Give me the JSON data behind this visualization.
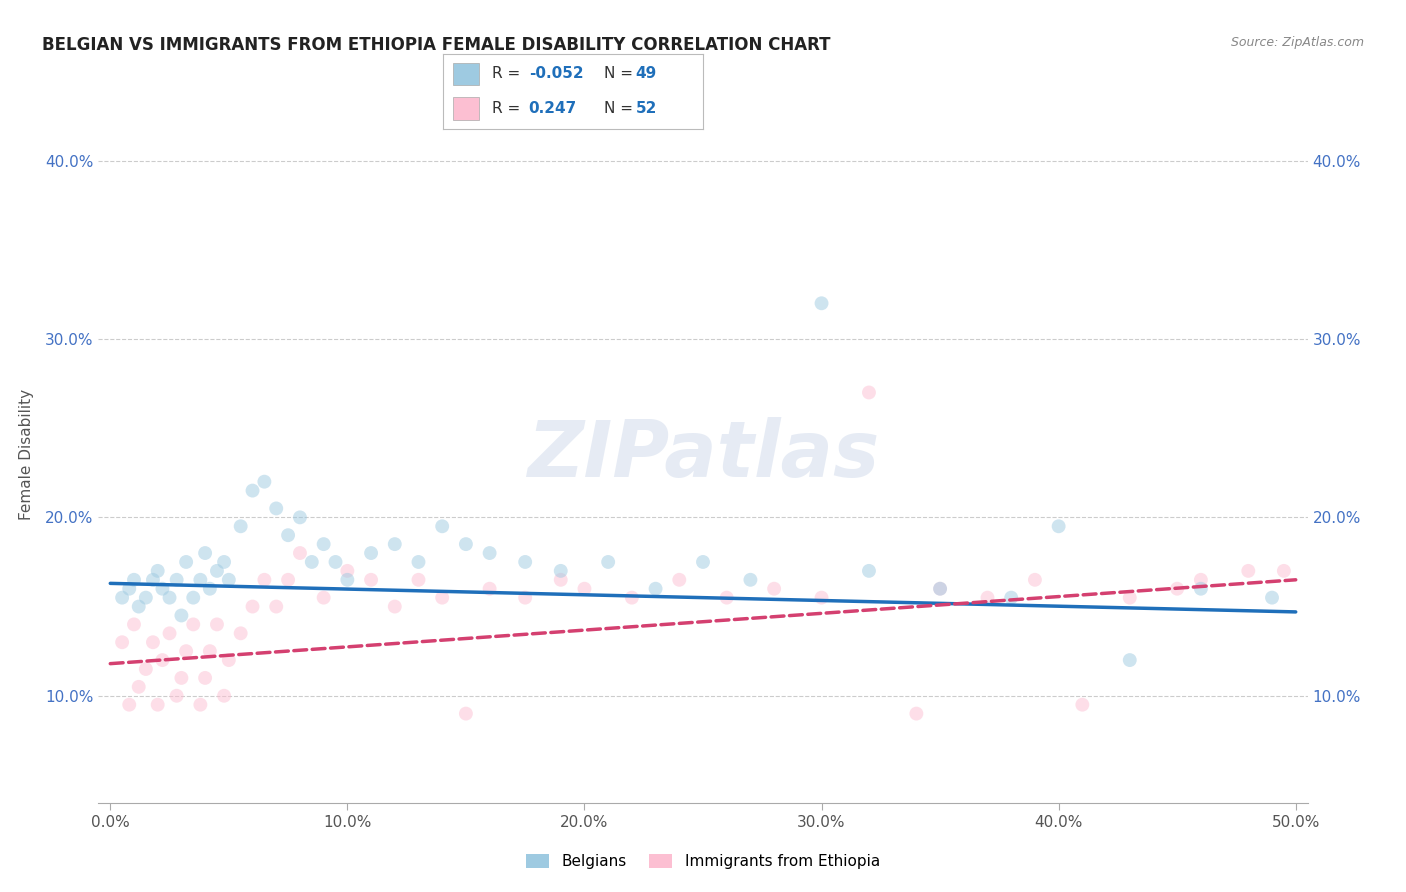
{
  "title": "BELGIAN VS IMMIGRANTS FROM ETHIOPIA FEMALE DISABILITY CORRELATION CHART",
  "source": "Source: ZipAtlas.com",
  "ylabel": "Female Disability",
  "xlabel": "",
  "watermark": "ZIPatlas",
  "xlim": [
    -0.005,
    0.505
  ],
  "ylim": [
    0.04,
    0.43
  ],
  "xticks": [
    0.0,
    0.1,
    0.2,
    0.3,
    0.4,
    0.5
  ],
  "yticks": [
    0.1,
    0.2,
    0.3,
    0.4
  ],
  "xtick_labels": [
    "0.0%",
    "10.0%",
    "20.0%",
    "30.0%",
    "40.0%",
    "50.0%"
  ],
  "ytick_labels": [
    "10.0%",
    "20.0%",
    "30.0%",
    "40.0%"
  ],
  "legend_label1": "Belgians",
  "legend_label2": "Immigrants from Ethiopia",
  "r1": "-0.052",
  "n1": "49",
  "r2": "0.247",
  "n2": "52",
  "color_blue": "#9ecae1",
  "color_pink": "#fcbfd2",
  "line_color_blue": "#1f6fba",
  "line_color_pink": "#d44070",
  "blue_scatter_x": [
    0.005,
    0.008,
    0.01,
    0.012,
    0.015,
    0.018,
    0.02,
    0.022,
    0.025,
    0.028,
    0.03,
    0.032,
    0.035,
    0.038,
    0.04,
    0.042,
    0.045,
    0.048,
    0.05,
    0.055,
    0.06,
    0.065,
    0.07,
    0.075,
    0.08,
    0.085,
    0.09,
    0.095,
    0.1,
    0.11,
    0.12,
    0.13,
    0.14,
    0.15,
    0.16,
    0.175,
    0.19,
    0.21,
    0.23,
    0.25,
    0.27,
    0.3,
    0.32,
    0.35,
    0.38,
    0.4,
    0.43,
    0.46,
    0.49
  ],
  "blue_scatter_y": [
    0.155,
    0.16,
    0.165,
    0.15,
    0.155,
    0.165,
    0.17,
    0.16,
    0.155,
    0.165,
    0.145,
    0.175,
    0.155,
    0.165,
    0.18,
    0.16,
    0.17,
    0.175,
    0.165,
    0.195,
    0.215,
    0.22,
    0.205,
    0.19,
    0.2,
    0.175,
    0.185,
    0.175,
    0.165,
    0.18,
    0.185,
    0.175,
    0.195,
    0.185,
    0.18,
    0.175,
    0.17,
    0.175,
    0.16,
    0.175,
    0.165,
    0.32,
    0.17,
    0.16,
    0.155,
    0.195,
    0.12,
    0.16,
    0.155
  ],
  "pink_scatter_x": [
    0.005,
    0.008,
    0.01,
    0.012,
    0.015,
    0.018,
    0.02,
    0.022,
    0.025,
    0.028,
    0.03,
    0.032,
    0.035,
    0.038,
    0.04,
    0.042,
    0.045,
    0.048,
    0.05,
    0.055,
    0.06,
    0.065,
    0.07,
    0.075,
    0.08,
    0.09,
    0.1,
    0.11,
    0.12,
    0.13,
    0.14,
    0.15,
    0.16,
    0.175,
    0.19,
    0.2,
    0.22,
    0.24,
    0.26,
    0.28,
    0.3,
    0.32,
    0.34,
    0.35,
    0.37,
    0.39,
    0.41,
    0.43,
    0.45,
    0.46,
    0.48,
    0.495
  ],
  "pink_scatter_y": [
    0.13,
    0.095,
    0.14,
    0.105,
    0.115,
    0.13,
    0.095,
    0.12,
    0.135,
    0.1,
    0.11,
    0.125,
    0.14,
    0.095,
    0.11,
    0.125,
    0.14,
    0.1,
    0.12,
    0.135,
    0.15,
    0.165,
    0.15,
    0.165,
    0.18,
    0.155,
    0.17,
    0.165,
    0.15,
    0.165,
    0.155,
    0.09,
    0.16,
    0.155,
    0.165,
    0.16,
    0.155,
    0.165,
    0.155,
    0.16,
    0.155,
    0.27,
    0.09,
    0.16,
    0.155,
    0.165,
    0.095,
    0.155,
    0.16,
    0.165,
    0.17,
    0.17
  ],
  "blue_trend_x": [
    0.0,
    0.5
  ],
  "blue_trend_y": [
    0.163,
    0.147
  ],
  "pink_trend_x": [
    0.0,
    0.5
  ],
  "pink_trend_y": [
    0.118,
    0.165
  ],
  "background_color": "#ffffff",
  "grid_color": "#cccccc",
  "title_fontsize": 12,
  "axis_fontsize": 11,
  "tick_fontsize": 11,
  "scatter_size": 100,
  "scatter_alpha": 0.5,
  "watermark_fontsize": 56,
  "watermark_color": "#c8d4e8",
  "watermark_alpha": 0.45
}
